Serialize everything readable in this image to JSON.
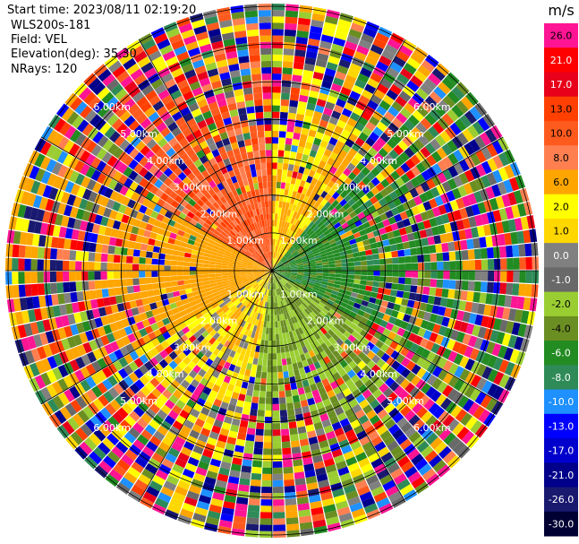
{
  "header": {
    "start_time": "Start time: 2023/08/11 02:19:20",
    "station": "WLS200s-181",
    "field": "Field: VEL",
    "elevation": "Elevation(deg): 35.30",
    "nrays": "NRays: 120"
  },
  "chart_data": {
    "type": "heatmap",
    "projection": "polar-ppi",
    "field": "VEL",
    "unit": "m/s",
    "nrays": 120,
    "range_rings_km": [
      1.0,
      2.0,
      3.0,
      4.0,
      5.0,
      6.0
    ],
    "max_range_km": 7.0,
    "range_labels": [
      "1.00km",
      "2.00km",
      "3.00km",
      "4.00km",
      "5.00km",
      "6.00km"
    ],
    "colorbar_ticks": [
      "26.0",
      "21.0",
      "17.0",
      "13.0",
      "10.0",
      "8.0",
      "6.0",
      "2.0",
      "1.0",
      "0.0",
      "-1.0",
      "-2.0",
      "-4.0",
      "-6.0",
      "-8.0",
      "-10.0",
      "-13.0",
      "-17.0",
      "-21.0",
      "-26.0",
      "-30.0"
    ],
    "colorbar_colors": [
      "#ff1493",
      "#ff0000",
      "#e8001a",
      "#ff4000",
      "#ff5a1e",
      "#ff7f50",
      "#ffa500",
      "#ffff00",
      "#ffd700",
      "#808080",
      "#696969",
      "#9acd32",
      "#6b8e23",
      "#228b22",
      "#2e8b57",
      "#1e90ff",
      "#0000ff",
      "#0000cd",
      "#00008b",
      "#191970",
      "#000033"
    ],
    "azimuth_velocity_sectors": [
      {
        "from_deg": 300,
        "to_deg": 360,
        "near_range_value": 9
      },
      {
        "from_deg": 0,
        "to_deg": 40,
        "near_range_value": 2
      },
      {
        "from_deg": 40,
        "to_deg": 120,
        "near_range_value": -7
      },
      {
        "from_deg": 120,
        "to_deg": 190,
        "near_range_value": -4
      },
      {
        "from_deg": 190,
        "to_deg": 240,
        "near_range_value": 1
      },
      {
        "from_deg": 240,
        "to_deg": 300,
        "near_range_value": 4
      }
    ]
  }
}
